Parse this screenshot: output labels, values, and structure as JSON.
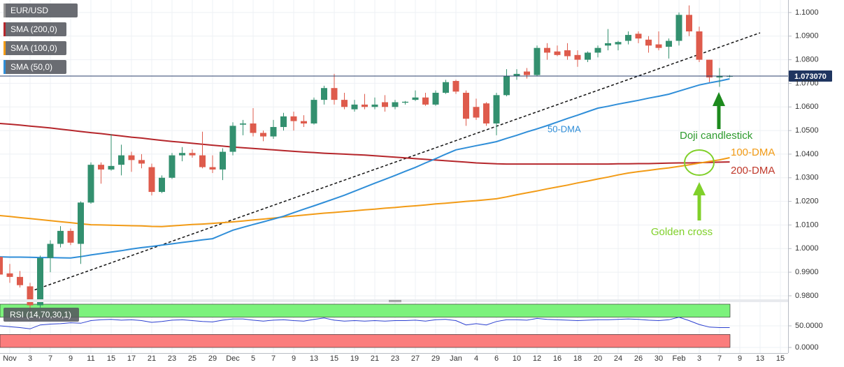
{
  "chart_data": [
    {
      "type": "candlestick",
      "title": "EUR/USD",
      "categories": [
        null,
        "Nov",
        null,
        "3",
        null,
        "7",
        null,
        "9",
        null,
        "11",
        null,
        "15",
        null,
        "17",
        null,
        "21",
        null,
        "23",
        null,
        "25",
        null,
        "29",
        null,
        "Dec",
        null,
        "5",
        null,
        "7",
        null,
        "9",
        null,
        "13",
        null,
        "15",
        null,
        "19",
        null,
        "21",
        null,
        "23",
        null,
        "27",
        null,
        "29",
        null,
        "Jan",
        null,
        "4",
        null,
        "6",
        null,
        "10",
        null,
        "12",
        null,
        "16",
        null,
        "18",
        null,
        "20",
        null,
        "24",
        null,
        "26",
        null,
        "30",
        null,
        "Feb",
        null,
        "3",
        null,
        "7",
        null,
        "9",
        null,
        "13",
        null,
        "15"
      ],
      "open": [
        0.9965,
        0.9895,
        0.988,
        0.984,
        0.976,
        0.996,
        1.002,
        1.0075,
        1.002,
        1.0195,
        1.0355,
        1.0335,
        1.0355,
        1.0395,
        1.0375,
        1.0345,
        1.024,
        1.03,
        1.0395,
        1.0405,
        1.0395,
        1.0345,
        1.0335,
        1.041,
        1.0525,
        1.053,
        1.049,
        1.0475,
        1.0515,
        1.056,
        1.054,
        1.053,
        1.063,
        1.068,
        1.063,
        1.059,
        1.061,
        1.06,
        1.062,
        1.06,
        1.0618,
        1.063,
        1.064,
        1.061,
        1.066,
        1.071,
        1.066,
        1.06,
        1.0615,
        1.053,
        1.065,
        1.073,
        1.075,
        1.0735,
        1.085,
        1.0835,
        1.084,
        1.082,
        1.08,
        1.083,
        1.086,
        1.0865,
        1.088,
        1.091,
        1.0885,
        1.0865,
        1.0855,
        1.088,
        1.099,
        1.092,
        1.08,
        1.0725,
        1.073,
        null,
        null,
        null,
        null,
        null
      ],
      "high": [
        0.9975,
        0.9935,
        0.9905,
        0.9855,
        0.997,
        1.0035,
        1.0095,
        1.0085,
        1.02,
        1.0365,
        1.0365,
        1.0485,
        1.044,
        1.041,
        1.04,
        1.036,
        1.031,
        1.0405,
        1.043,
        1.042,
        1.0495,
        1.0395,
        1.0425,
        1.0535,
        1.0545,
        1.0595,
        1.05,
        1.0545,
        1.0575,
        1.058,
        1.0565,
        1.064,
        1.069,
        1.074,
        1.066,
        1.063,
        1.0655,
        1.064,
        1.065,
        1.063,
        1.0625,
        1.067,
        1.066,
        1.067,
        1.0715,
        1.0715,
        1.067,
        1.0635,
        1.062,
        1.066,
        1.076,
        1.076,
        1.0765,
        1.086,
        1.087,
        1.086,
        1.087,
        1.084,
        1.0835,
        1.086,
        1.093,
        1.088,
        1.092,
        1.092,
        1.09,
        1.092,
        1.089,
        1.1,
        1.103,
        1.094,
        1.08,
        1.0765,
        1.0735,
        null,
        null,
        null,
        null,
        null
      ],
      "low": [
        0.988,
        0.9855,
        0.9835,
        0.973,
        0.975,
        0.99,
        1.0005,
        1.0015,
        0.9935,
        1.019,
        1.0275,
        1.033,
        1.031,
        1.0325,
        1.034,
        1.0225,
        1.0235,
        1.0295,
        1.037,
        1.0385,
        1.034,
        1.032,
        1.029,
        1.0395,
        1.048,
        1.0475,
        1.0455,
        1.0465,
        1.05,
        1.05,
        1.0515,
        1.0525,
        1.061,
        1.061,
        1.059,
        1.058,
        1.059,
        1.059,
        1.058,
        1.059,
        1.061,
        1.0625,
        1.0605,
        1.0605,
        1.0655,
        1.0655,
        1.052,
        1.0545,
        1.052,
        1.048,
        1.0645,
        1.0715,
        1.072,
        1.073,
        1.08,
        1.0815,
        1.08,
        1.077,
        1.079,
        1.081,
        1.084,
        1.084,
        1.0865,
        1.087,
        1.083,
        1.084,
        1.0805,
        1.086,
        1.09,
        1.079,
        1.0705,
        1.0685,
        1.0725,
        null,
        null,
        null,
        null,
        null
      ],
      "close": [
        0.989,
        0.988,
        0.9845,
        0.976,
        0.996,
        1.002,
        1.0075,
        1.0025,
        1.0195,
        1.0355,
        1.0335,
        1.035,
        1.0395,
        1.0375,
        1.036,
        1.024,
        1.03,
        1.0395,
        1.0405,
        1.0395,
        1.0345,
        1.0335,
        1.041,
        1.052,
        1.053,
        1.049,
        1.0475,
        1.0515,
        1.056,
        1.054,
        1.053,
        1.063,
        1.068,
        1.063,
        1.06,
        1.061,
        1.06,
        1.061,
        1.06,
        1.062,
        1.0622,
        1.064,
        1.061,
        1.066,
        1.0705,
        1.0665,
        1.055,
        1.0555,
        1.053,
        1.065,
        1.073,
        1.074,
        1.0735,
        1.085,
        1.083,
        1.082,
        1.0815,
        1.08,
        1.083,
        1.085,
        1.087,
        1.0875,
        1.0905,
        1.089,
        1.086,
        1.085,
        1.088,
        1.099,
        1.092,
        1.08,
        1.0725,
        1.073,
        1.0731,
        null,
        null,
        null,
        null,
        null
      ],
      "up_color": "#33906f",
      "down_color": "#de5b4c",
      "series": [
        {
          "name": "SMA (200,0)",
          "color": "#b5262b",
          "values": [
            1.053,
            1.0527,
            1.0523,
            1.0519,
            1.0515,
            1.0511,
            1.0506,
            1.0501,
            1.0496,
            1.0491,
            1.0487,
            1.0482,
            1.0477,
            1.0472,
            1.0468,
            1.0463,
            1.0458,
            1.0454,
            1.045,
            1.0446,
            1.0442,
            1.0438,
            1.0434,
            1.043,
            1.0427,
            1.0424,
            1.0421,
            1.0418,
            1.0415,
            1.0412,
            1.0409,
            1.0407,
            1.0404,
            1.0402,
            1.04,
            1.0398,
            1.0396,
            1.0393,
            1.039,
            1.0387,
            1.0384,
            1.0381,
            1.0378,
            1.0375,
            1.0372,
            1.0369,
            1.0366,
            1.0363,
            1.0361,
            1.0359,
            1.0358,
            1.0358,
            1.0358,
            1.0358,
            1.0358,
            1.0358,
            1.0358,
            1.0358,
            1.0358,
            1.0358,
            1.0358,
            1.0359,
            1.0359,
            1.036,
            1.036,
            1.0361,
            1.0362,
            1.0363,
            1.0363,
            1.0364,
            1.0365,
            1.0366,
            1.0367,
            null,
            null,
            null,
            null,
            null
          ]
        },
        {
          "name": "SMA (100,0)",
          "color": "#f29b16",
          "values": [
            1.014,
            1.0136,
            1.0131,
            1.0127,
            1.0123,
            1.0118,
            1.0114,
            1.011,
            1.0105,
            1.0101,
            1.01,
            1.0099,
            1.0098,
            1.0097,
            1.0096,
            1.0094,
            1.0093,
            1.0096,
            1.0099,
            1.0102,
            1.0104,
            1.0107,
            1.011,
            1.0113,
            1.0117,
            1.0121,
            1.0125,
            1.0129,
            1.0134,
            1.0138,
            1.0142,
            1.0146,
            1.015,
            1.0153,
            1.0157,
            1.016,
            1.0164,
            1.0167,
            1.0171,
            1.0174,
            1.0178,
            1.0181,
            1.0185,
            1.0189,
            1.0192,
            1.0196,
            1.02,
            1.0203,
            1.0207,
            1.0211,
            1.0219,
            1.0228,
            1.0236,
            1.0244,
            1.0253,
            1.0261,
            1.0269,
            1.0278,
            1.0286,
            1.0295,
            1.0303,
            1.0312,
            1.032,
            1.0326,
            1.0331,
            1.0337,
            1.0342,
            1.0348,
            1.0355,
            1.0362,
            1.0369,
            1.0376,
            1.0385,
            null,
            null,
            null,
            null,
            null
          ]
        },
        {
          "name": "SMA (50,0)",
          "color": "#2f8ed8",
          "values": [
            0.9965,
            0.9964,
            0.9964,
            0.9963,
            0.9962,
            0.9962,
            0.9961,
            0.996,
            0.9966,
            0.9973,
            0.9979,
            0.9985,
            0.9991,
            0.9998,
            1.0004,
            1.0009,
            1.0015,
            1.002,
            1.0026,
            1.0031,
            1.0037,
            1.0042,
            1.006,
            1.0078,
            1.009,
            1.0102,
            1.0113,
            1.0125,
            1.0137,
            1.0152,
            1.0167,
            1.0181,
            1.0196,
            1.0211,
            1.0226,
            1.0243,
            1.026,
            1.0277,
            1.0293,
            1.031,
            1.0327,
            1.0344,
            1.0363,
            1.0381,
            1.04,
            1.0418,
            1.0427,
            1.0436,
            1.0444,
            1.0453,
            1.0467,
            1.048,
            1.0494,
            1.0507,
            1.0521,
            1.0536,
            1.0551,
            1.0565,
            1.058,
            1.0595,
            1.0603,
            1.0612,
            1.062,
            1.0628,
            1.0637,
            1.0645,
            1.0654,
            1.0667,
            1.068,
            1.0693,
            1.0702,
            1.071,
            1.0719,
            null,
            null,
            null,
            null,
            null
          ]
        }
      ],
      "trendline": {
        "x": [
          3,
          75
        ],
        "values": [
          0.9818,
          1.0914
        ],
        "color": "#111111"
      },
      "current_price": {
        "value": 1.07307,
        "label": "1.073070"
      },
      "annotations": [
        {
          "text": "50-DMA",
          "color": "#2f8ed8"
        },
        {
          "text": "Doji candlestick",
          "color": "#2e9b2e"
        },
        {
          "text": "100-DMA",
          "color": "#f29b16"
        },
        {
          "text": "200-DMA",
          "color": "#c0392b"
        },
        {
          "text": "Golden cross",
          "color": "#80d02a"
        }
      ],
      "ylim": [
        0.9788,
        1.1053
      ],
      "yticks": [
        {
          "value": 1.1,
          "label": "1.1000"
        },
        {
          "value": 1.09,
          "label": "1.0900"
        },
        {
          "value": 1.08,
          "label": "1.0800"
        },
        {
          "value": 1.07,
          "label": "1.0700"
        },
        {
          "value": 1.06,
          "label": "1.0600"
        },
        {
          "value": 1.05,
          "label": "1.0500"
        },
        {
          "value": 1.04,
          "label": "1.0400"
        },
        {
          "value": 1.03,
          "label": "1.0300"
        },
        {
          "value": 1.02,
          "label": "1.0200"
        },
        {
          "value": 1.01,
          "label": "1.0100"
        },
        {
          "value": 1.0,
          "label": "1.0000"
        },
        {
          "value": 0.99,
          "label": "0.9900"
        },
        {
          "value": 0.98,
          "label": "0.9800"
        }
      ],
      "grid": true
    },
    {
      "type": "line",
      "title": "RSI (14,70,30,1)",
      "color": "#2b3fd0",
      "values": [
        50,
        48,
        46,
        43,
        52,
        54,
        55,
        57,
        56,
        62,
        64,
        65,
        63,
        64,
        62,
        58,
        60,
        63,
        64,
        62,
        60,
        59,
        63,
        66,
        66,
        63,
        61,
        63,
        64,
        62,
        61,
        65,
        68,
        63,
        61,
        62,
        61,
        62,
        61,
        62,
        62,
        63,
        61,
        64,
        65,
        62,
        52,
        55,
        52,
        60,
        64,
        64,
        63,
        67,
        65,
        64,
        63,
        62,
        63,
        64,
        64,
        65,
        66,
        65,
        63,
        62,
        64,
        70,
        62,
        53,
        47,
        46,
        46,
        null,
        null,
        null,
        null,
        null
      ],
      "upper_band": [
        70,
        100
      ],
      "upper_color": "#7cf27c",
      "lower_band": [
        0,
        30
      ],
      "lower_color": "#fb7d7d",
      "ylim": [
        -12.9,
        104.8
      ],
      "yticks": [
        {
          "value": 50,
          "label": "50.0000"
        },
        {
          "value": 0,
          "label": "0.0000"
        }
      ],
      "grid": true
    }
  ]
}
